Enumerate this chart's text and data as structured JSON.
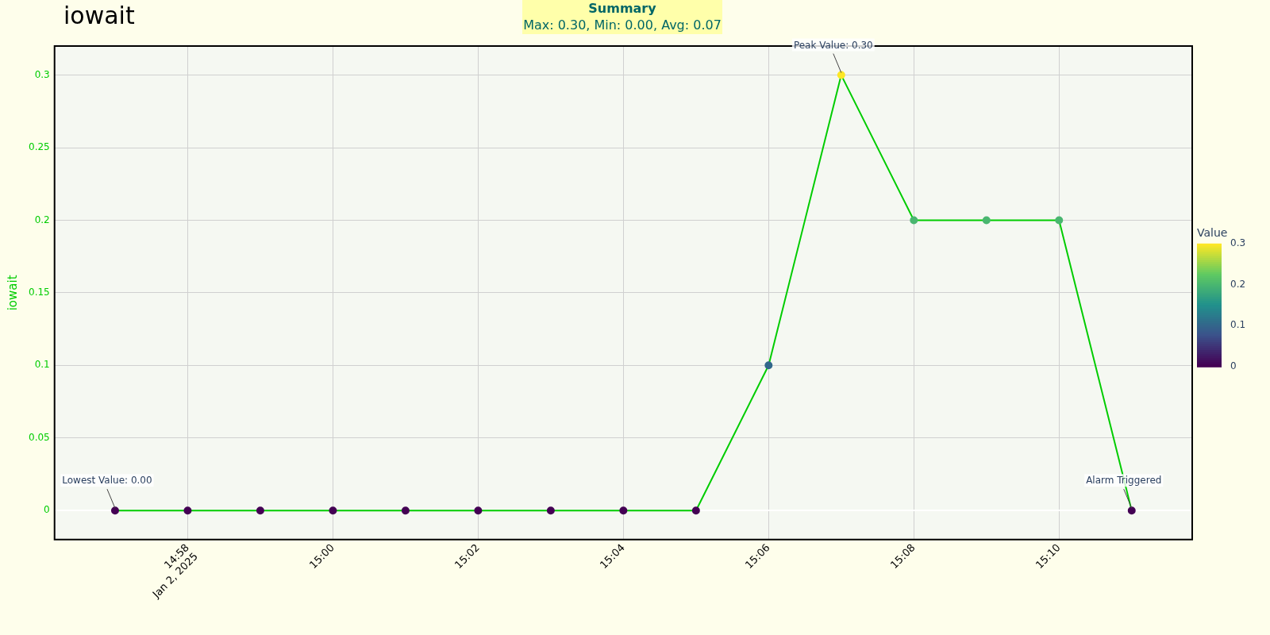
{
  "chart_data": {
    "type": "line",
    "title": "iowait",
    "ylabel": "iowait",
    "clabel": "Value",
    "x": [
      "2025-01-02T14:57",
      "2025-01-02T14:58",
      "2025-01-02T14:59",
      "2025-01-02T15:00",
      "2025-01-02T15:01",
      "2025-01-02T15:02",
      "2025-01-02T15:03",
      "2025-01-02T15:04",
      "2025-01-02T15:05",
      "2025-01-02T15:06",
      "2025-01-02T15:07",
      "2025-01-02T15:08",
      "2025-01-02T15:09",
      "2025-01-02T15:10",
      "2025-01-02T15:11"
    ],
    "series": [
      {
        "color": "#00cc00",
        "values": [
          0,
          0,
          0,
          0,
          0,
          0,
          0,
          0,
          0,
          0.1,
          0.3,
          0.2,
          0.2,
          0.2,
          0
        ]
      }
    ],
    "clim": [
      0,
      0.3
    ],
    "cticks": [
      0,
      0.1,
      0.2,
      0.3
    ],
    "xlim": [
      "2025-01-02T14:56:10",
      "2025-01-02T15:11:50"
    ],
    "xticks": [
      {
        "value": "2025-01-02T14:58",
        "label": "14:58\nJan 2, 2025"
      },
      {
        "value": "2025-01-02T15:00",
        "label": "15:00"
      },
      {
        "value": "2025-01-02T15:02",
        "label": "15:02"
      },
      {
        "value": "2025-01-02T15:04",
        "label": "15:04"
      },
      {
        "value": "2025-01-02T15:06",
        "label": "15:06"
      },
      {
        "value": "2025-01-02T15:08",
        "label": "15:08"
      },
      {
        "value": "2025-01-02T15:10",
        "label": "15:10"
      }
    ],
    "ylim": [
      -0.02,
      0.32
    ],
    "yticks": [
      0,
      0.05,
      0.1,
      0.15,
      0.2,
      0.25,
      0.3
    ],
    "grid": true,
    "legend": false,
    "marker": "circle",
    "line_style": "solid",
    "annotations": [
      "Summary\nMax: 0.30, Min: 0.00, Avg: 0.07",
      {
        "text": "Peak Value: 0.30",
        "x": "2025-01-02T15:07",
        "y": 0.3
      },
      {
        "text": "Lowest Value: 0.00",
        "x": "2025-01-02T14:57",
        "y": 0
      },
      {
        "text": "Alarm Triggered",
        "x": "2025-01-02T15:11",
        "y": 0
      }
    ]
  }
}
